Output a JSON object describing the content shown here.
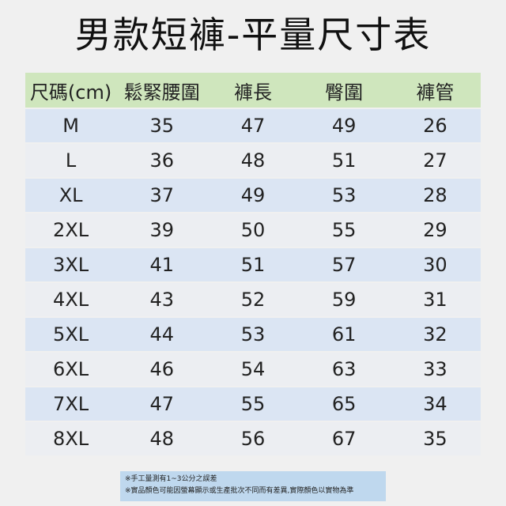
{
  "title": "男款短褲-平量尺寸表",
  "table": {
    "header": [
      "尺碼(cm)",
      "鬆緊腰圍",
      "褲長",
      "臀圍",
      "褲管"
    ],
    "rows": [
      [
        "M",
        35,
        47,
        49,
        26
      ],
      [
        "L",
        36,
        48,
        51,
        27
      ],
      [
        "XL",
        37,
        49,
        53,
        28
      ],
      [
        "2XL",
        39,
        50,
        55,
        29
      ],
      [
        "3XL",
        41,
        51,
        57,
        30
      ],
      [
        "4XL",
        43,
        52,
        59,
        31
      ],
      [
        "5XL",
        44,
        53,
        61,
        32
      ],
      [
        "6XL",
        46,
        54,
        63,
        33
      ],
      [
        "7XL",
        47,
        55,
        65,
        34
      ],
      [
        "8XL",
        48,
        56,
        67,
        35
      ]
    ]
  },
  "notes": [
    "※手工量測有1~3公分之誤差",
    "※實品顏色可能因螢幕顯示或生產批次不同而有差異,實際顏色以實物為準"
  ]
}
